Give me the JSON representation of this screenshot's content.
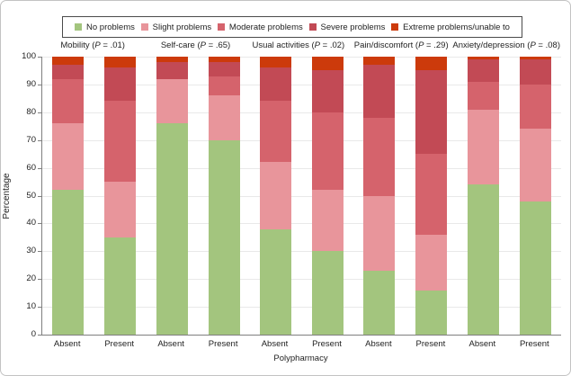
{
  "chart_data": {
    "type": "bar",
    "stacked": true,
    "ylabel": "Percentage",
    "xlabel": "Polypharmacy",
    "ylim": [
      0,
      100
    ],
    "yticks": [
      0,
      10,
      20,
      30,
      40,
      50,
      60,
      70,
      80,
      90,
      100
    ],
    "grid": "horizontal",
    "legend_position": "top",
    "legend": [
      {
        "name": "No problems",
        "color": "#a3c57e"
      },
      {
        "name": "Slight problems",
        "color": "#e8959b"
      },
      {
        "name": "Moderate problems",
        "color": "#d5636c"
      },
      {
        "name": "Severe problems",
        "color": "#c24a55"
      },
      {
        "name": "Extreme problems/unable to",
        "color": "#cc3a0b"
      }
    ],
    "p_label_letter": "P",
    "groups": [
      {
        "dimension": "Mobility",
        "p_value": ".01",
        "bars": [
          {
            "label": "Absent",
            "values": [
              52,
              24,
              16,
              5,
              3
            ]
          },
          {
            "label": "Present",
            "values": [
              35,
              20,
              29,
              12,
              4
            ]
          }
        ]
      },
      {
        "dimension": "Self-care",
        "p_value": ".65",
        "bars": [
          {
            "label": "Absent",
            "values": [
              76,
              16,
              0,
              6,
              2
            ]
          },
          {
            "label": "Present",
            "values": [
              70,
              16,
              7,
              5,
              2
            ]
          }
        ]
      },
      {
        "dimension": "Usual activities",
        "p_value": ".02",
        "bars": [
          {
            "label": "Absent",
            "values": [
              38,
              24,
              22,
              12,
              4
            ]
          },
          {
            "label": "Present",
            "values": [
              30,
              22,
              28,
              15,
              5
            ]
          }
        ]
      },
      {
        "dimension": "Pain/discomfort",
        "p_value": ".29",
        "bars": [
          {
            "label": "Absent",
            "values": [
              23,
              27,
              28,
              19,
              3
            ]
          },
          {
            "label": "Present",
            "values": [
              16,
              20,
              29,
              30,
              5
            ]
          }
        ]
      },
      {
        "dimension": "Anxiety/depression",
        "p_value": ".08",
        "bars": [
          {
            "label": "Absent",
            "values": [
              54,
              27,
              10,
              8,
              1
            ]
          },
          {
            "label": "Present",
            "values": [
              48,
              26,
              16,
              9,
              1
            ]
          }
        ]
      }
    ]
  }
}
